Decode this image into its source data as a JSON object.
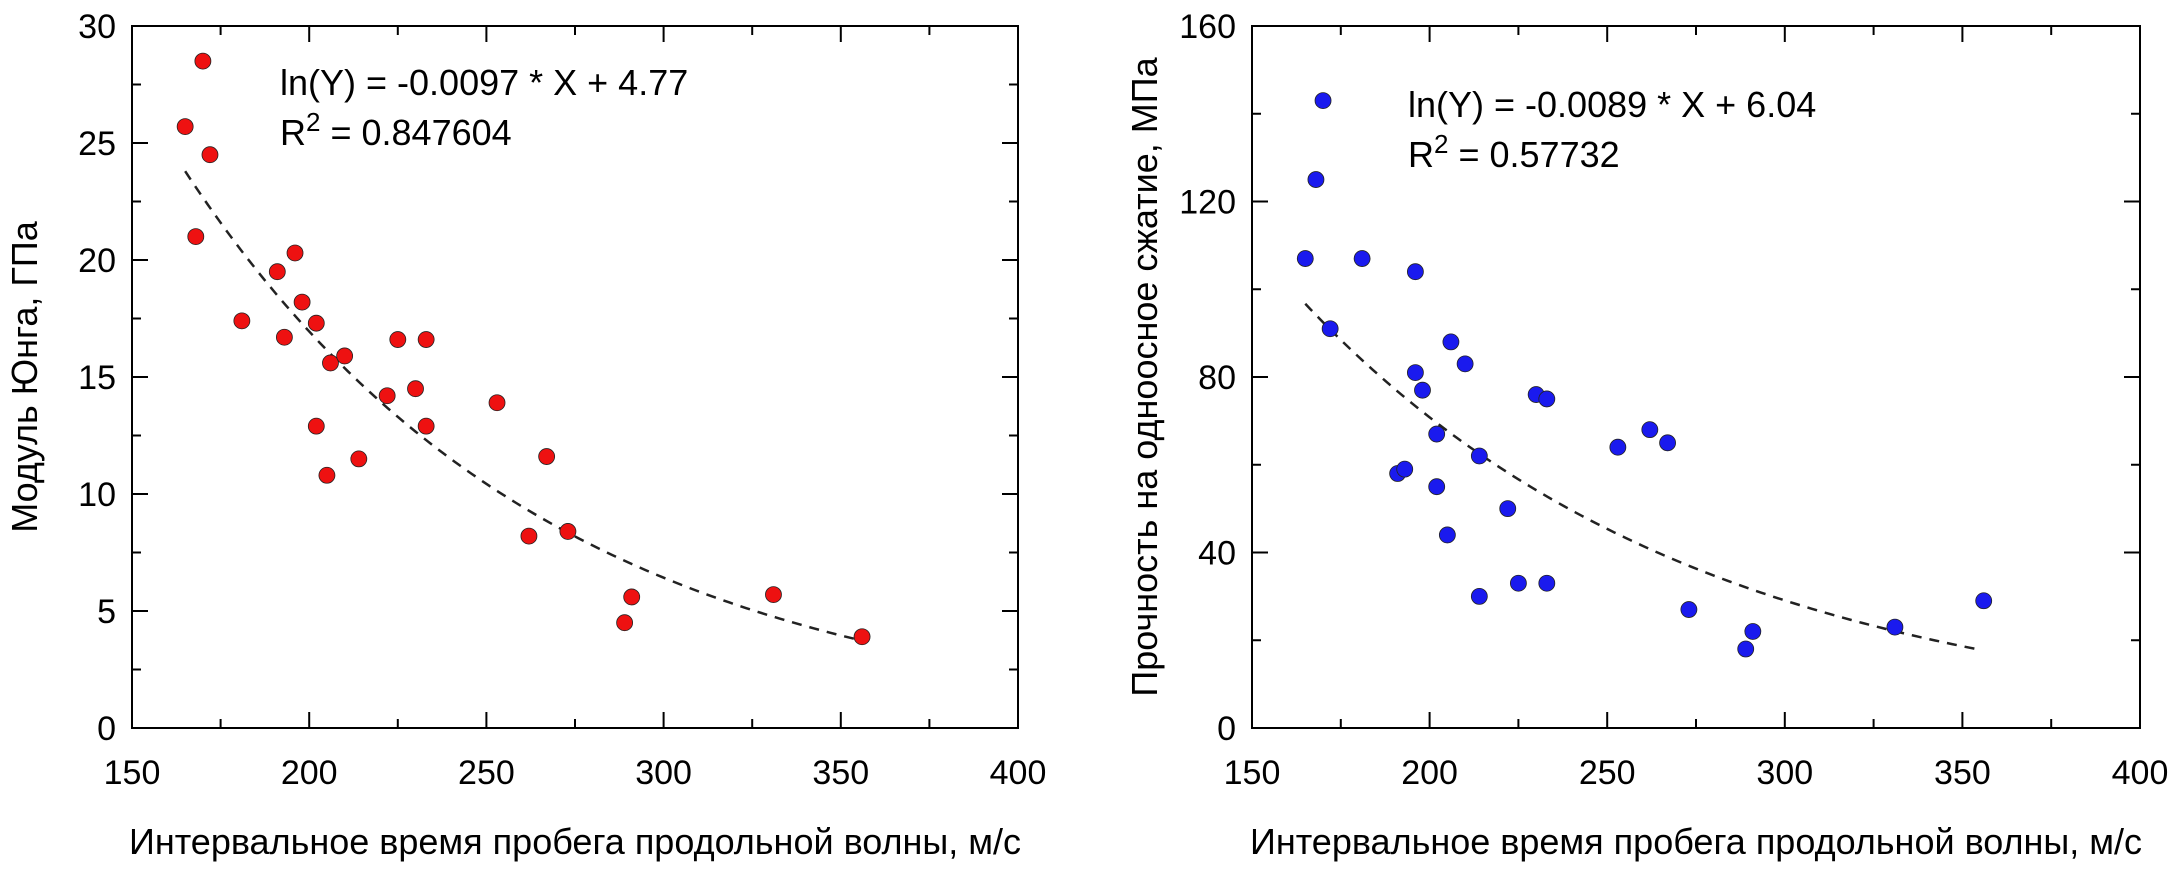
{
  "chart_data": [
    {
      "type": "scatter",
      "xlabel": "Интервальное время пробега продольной волны, м/с",
      "ylabel": "Модуль Юнга, ГПа",
      "xlim": [
        150,
        400
      ],
      "ylim": [
        0,
        30
      ],
      "x_ticks": [
        "150",
        "200",
        "250",
        "300",
        "350",
        "400"
      ],
      "y_ticks": [
        "0",
        "5",
        "10",
        "15",
        "20",
        "25",
        "30"
      ],
      "grid": false,
      "annotation": {
        "line1": "ln(Y) = -0.0097 * X + 4.77",
        "r2_prefix": "R",
        "r2_sup": "2",
        "r2_value": " = 0.847604"
      },
      "fit": {
        "slope": -0.0097,
        "intercept": 4.77,
        "x_range": [
          165,
          355
        ]
      },
      "marker_color": "#ee1111",
      "series": [
        {
          "points": [
            [
              165,
              25.7
            ],
            [
              168,
              21.0
            ],
            [
              170,
              28.5
            ],
            [
              172,
              24.5
            ],
            [
              181,
              17.4
            ],
            [
              191,
              19.5
            ],
            [
              193,
              16.7
            ],
            [
              196,
              20.3
            ],
            [
              198,
              18.2
            ],
            [
              202,
              17.3
            ],
            [
              202,
              12.9
            ],
            [
              205,
              10.8
            ],
            [
              206,
              15.6
            ],
            [
              210,
              15.9
            ],
            [
              214,
              11.5
            ],
            [
              222,
              14.2
            ],
            [
              225,
              16.6
            ],
            [
              230,
              14.5
            ],
            [
              233,
              16.6
            ],
            [
              233,
              12.9
            ],
            [
              253,
              13.9
            ],
            [
              262,
              8.2
            ],
            [
              267,
              11.6
            ],
            [
              273,
              8.4
            ],
            [
              289,
              4.5
            ],
            [
              291,
              5.6
            ],
            [
              331,
              5.7
            ],
            [
              356,
              3.9
            ]
          ]
        }
      ]
    },
    {
      "type": "scatter",
      "xlabel": "Интервальное время пробега продольной волны, м/с",
      "ylabel": "Прочность на одноосное сжатие, МПа",
      "xlim": [
        150,
        400
      ],
      "ylim": [
        0,
        160
      ],
      "x_ticks": [
        "150",
        "200",
        "250",
        "300",
        "350",
        "400"
      ],
      "y_ticks": [
        "0",
        "40",
        "80",
        "120",
        "160"
      ],
      "grid": false,
      "annotation": {
        "line1": "ln(Y) = -0.0089 * X + 6.04",
        "r2_prefix": "R",
        "r2_sup": "2",
        "r2_value": " = 0.57732"
      },
      "fit": {
        "slope": -0.0089,
        "intercept": 6.04,
        "x_range": [
          165,
          355
        ]
      },
      "marker_color": "#1a1aee",
      "series": [
        {
          "points": [
            [
              165,
              107
            ],
            [
              168,
              125
            ],
            [
              170,
              143
            ],
            [
              172,
              91
            ],
            [
              181,
              107
            ],
            [
              191,
              58
            ],
            [
              193,
              59
            ],
            [
              196,
              81
            ],
            [
              196,
              104
            ],
            [
              198,
              77
            ],
            [
              202,
              67
            ],
            [
              202,
              55
            ],
            [
              205,
              44
            ],
            [
              206,
              88
            ],
            [
              210,
              83
            ],
            [
              214,
              62
            ],
            [
              214,
              30
            ],
            [
              222,
              50
            ],
            [
              225,
              33
            ],
            [
              230,
              76
            ],
            [
              233,
              75
            ],
            [
              233,
              33
            ],
            [
              253,
              64
            ],
            [
              262,
              68
            ],
            [
              267,
              65
            ],
            [
              273,
              27
            ],
            [
              289,
              18
            ],
            [
              291,
              22
            ],
            [
              331,
              23
            ],
            [
              356,
              29
            ]
          ]
        }
      ]
    }
  ]
}
